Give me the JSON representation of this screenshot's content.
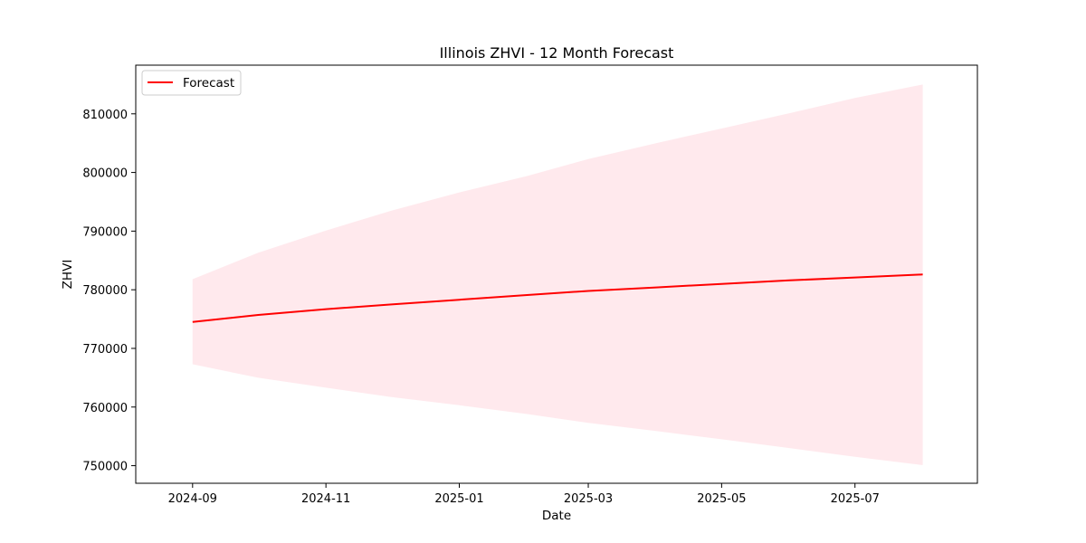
{
  "chart_data": {
    "type": "line",
    "title": "Illinois ZHVI - 12 Month Forecast",
    "xlabel": "Date",
    "ylabel": "ZHVI",
    "x": [
      "2024-09-01",
      "2024-10-01",
      "2024-11-01",
      "2024-12-01",
      "2025-01-01",
      "2025-02-01",
      "2025-03-01",
      "2025-04-01",
      "2025-05-01",
      "2025-06-01",
      "2025-07-01",
      "2025-08-01"
    ],
    "series": [
      {
        "name": "Forecast",
        "color": "#ff0000",
        "values": [
          774500,
          775700,
          776700,
          777500,
          778300,
          779100,
          779800,
          780400,
          781000,
          781600,
          782100,
          782600
        ]
      }
    ],
    "band": {
      "color": "#ffc0cb",
      "lower": [
        767300,
        765000,
        763300,
        761700,
        760300,
        758800,
        757300,
        755900,
        754500,
        753000,
        751500,
        750100
      ],
      "upper": [
        781800,
        786300,
        790100,
        793500,
        796600,
        799400,
        802300,
        805000,
        807500,
        810100,
        812700,
        815000
      ]
    },
    "x_ticks": [
      "2024-09",
      "2024-11",
      "2025-01",
      "2025-03",
      "2025-05",
      "2025-07"
    ],
    "y_ticks": [
      750000,
      760000,
      770000,
      780000,
      790000,
      800000,
      810000
    ],
    "xlim": [
      "2024-08-06",
      "2025-08-26"
    ],
    "ylim": [
      747000,
      818300
    ],
    "grid": false,
    "legend_position": "top-left"
  }
}
